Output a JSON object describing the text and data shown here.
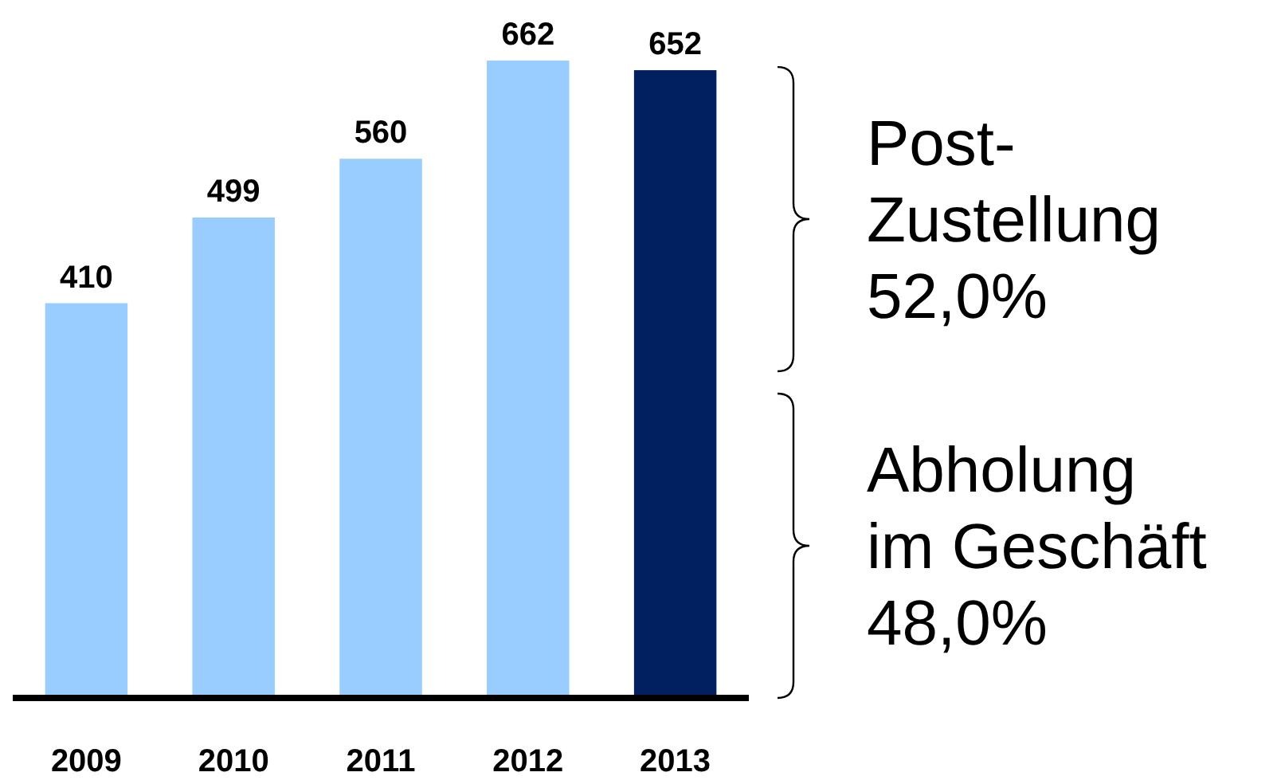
{
  "chart_data": {
    "type": "bar",
    "categories": [
      "2009",
      "2010",
      "2011",
      "2012",
      "2013"
    ],
    "values": [
      410,
      499,
      560,
      662,
      652
    ],
    "colors": [
      "#99ccff",
      "#99ccff",
      "#99ccff",
      "#99ccff",
      "#002060"
    ],
    "data_labels": true,
    "annotations": [
      "Post-\nZustellung\n52,0%",
      "Abholung\nim Geschäft\n48,0%"
    ]
  }
}
